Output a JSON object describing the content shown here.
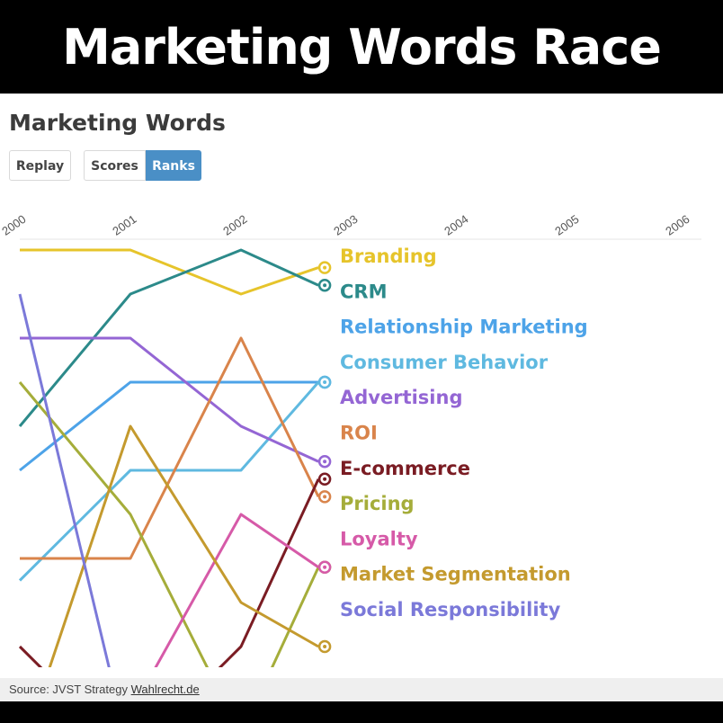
{
  "banner": {
    "title": "Marketing Words Race"
  },
  "panel": {
    "title": "Marketing Words",
    "buttons": {
      "replay": "Replay",
      "scores": "Scores",
      "ranks": "Ranks"
    },
    "active_mode": "Ranks"
  },
  "source": {
    "prefix": "Source: JVST Strategy",
    "link": "Wahlrecht.de"
  },
  "chart_data": {
    "type": "line",
    "x": [
      2000,
      2001,
      2002,
      2003,
      2004,
      2005,
      2006
    ],
    "tick_labels": [
      "2000",
      "2001",
      "2002",
      "2003",
      "2004",
      "2005",
      "2006"
    ],
    "y_meaning": "rank (1 = top)",
    "ylim": [
      1,
      12
    ],
    "animation_position": 2002.7,
    "series": [
      {
        "name": "Branding",
        "color": "#e6c42b",
        "ranks": [
          1,
          1,
          2,
          1.4
        ]
      },
      {
        "name": "CRM",
        "color": "#2c8a8a",
        "ranks": [
          5,
          2,
          1,
          1.8
        ]
      },
      {
        "name": "Relationship Marketing",
        "color": "#4da3e8",
        "ranks": [
          6,
          4,
          4,
          4
        ]
      },
      {
        "name": "Consumer Behavior",
        "color": "#5fb9e0",
        "ranks": [
          8.5,
          6,
          6,
          4
        ]
      },
      {
        "name": "Advertising",
        "color": "#9466d4",
        "ranks": [
          3,
          3,
          5,
          5.8
        ]
      },
      {
        "name": "ROI",
        "color": "#d9844b",
        "ranks": [
          8,
          8,
          3,
          6.6
        ]
      },
      {
        "name": "E-commerce",
        "color": "#7a1c23",
        "ranks": [
          10,
          12.5,
          10,
          6.2
        ]
      },
      {
        "name": "Pricing",
        "color": "#a5ad3a",
        "ranks": [
          4,
          7,
          12,
          8.2
        ]
      },
      {
        "name": "Loyalty",
        "color": "#d65aa8",
        "ranks": [
          12,
          11.5,
          7,
          8.2
        ]
      },
      {
        "name": "Market Segmentation",
        "color": "#c49a2e",
        "ranks": [
          12.5,
          5,
          9,
          10
        ]
      },
      {
        "name": "Social Responsibility",
        "color": "#7b79d9",
        "ranks": [
          2,
          12.5,
          12.5,
          10.5
        ]
      }
    ]
  }
}
